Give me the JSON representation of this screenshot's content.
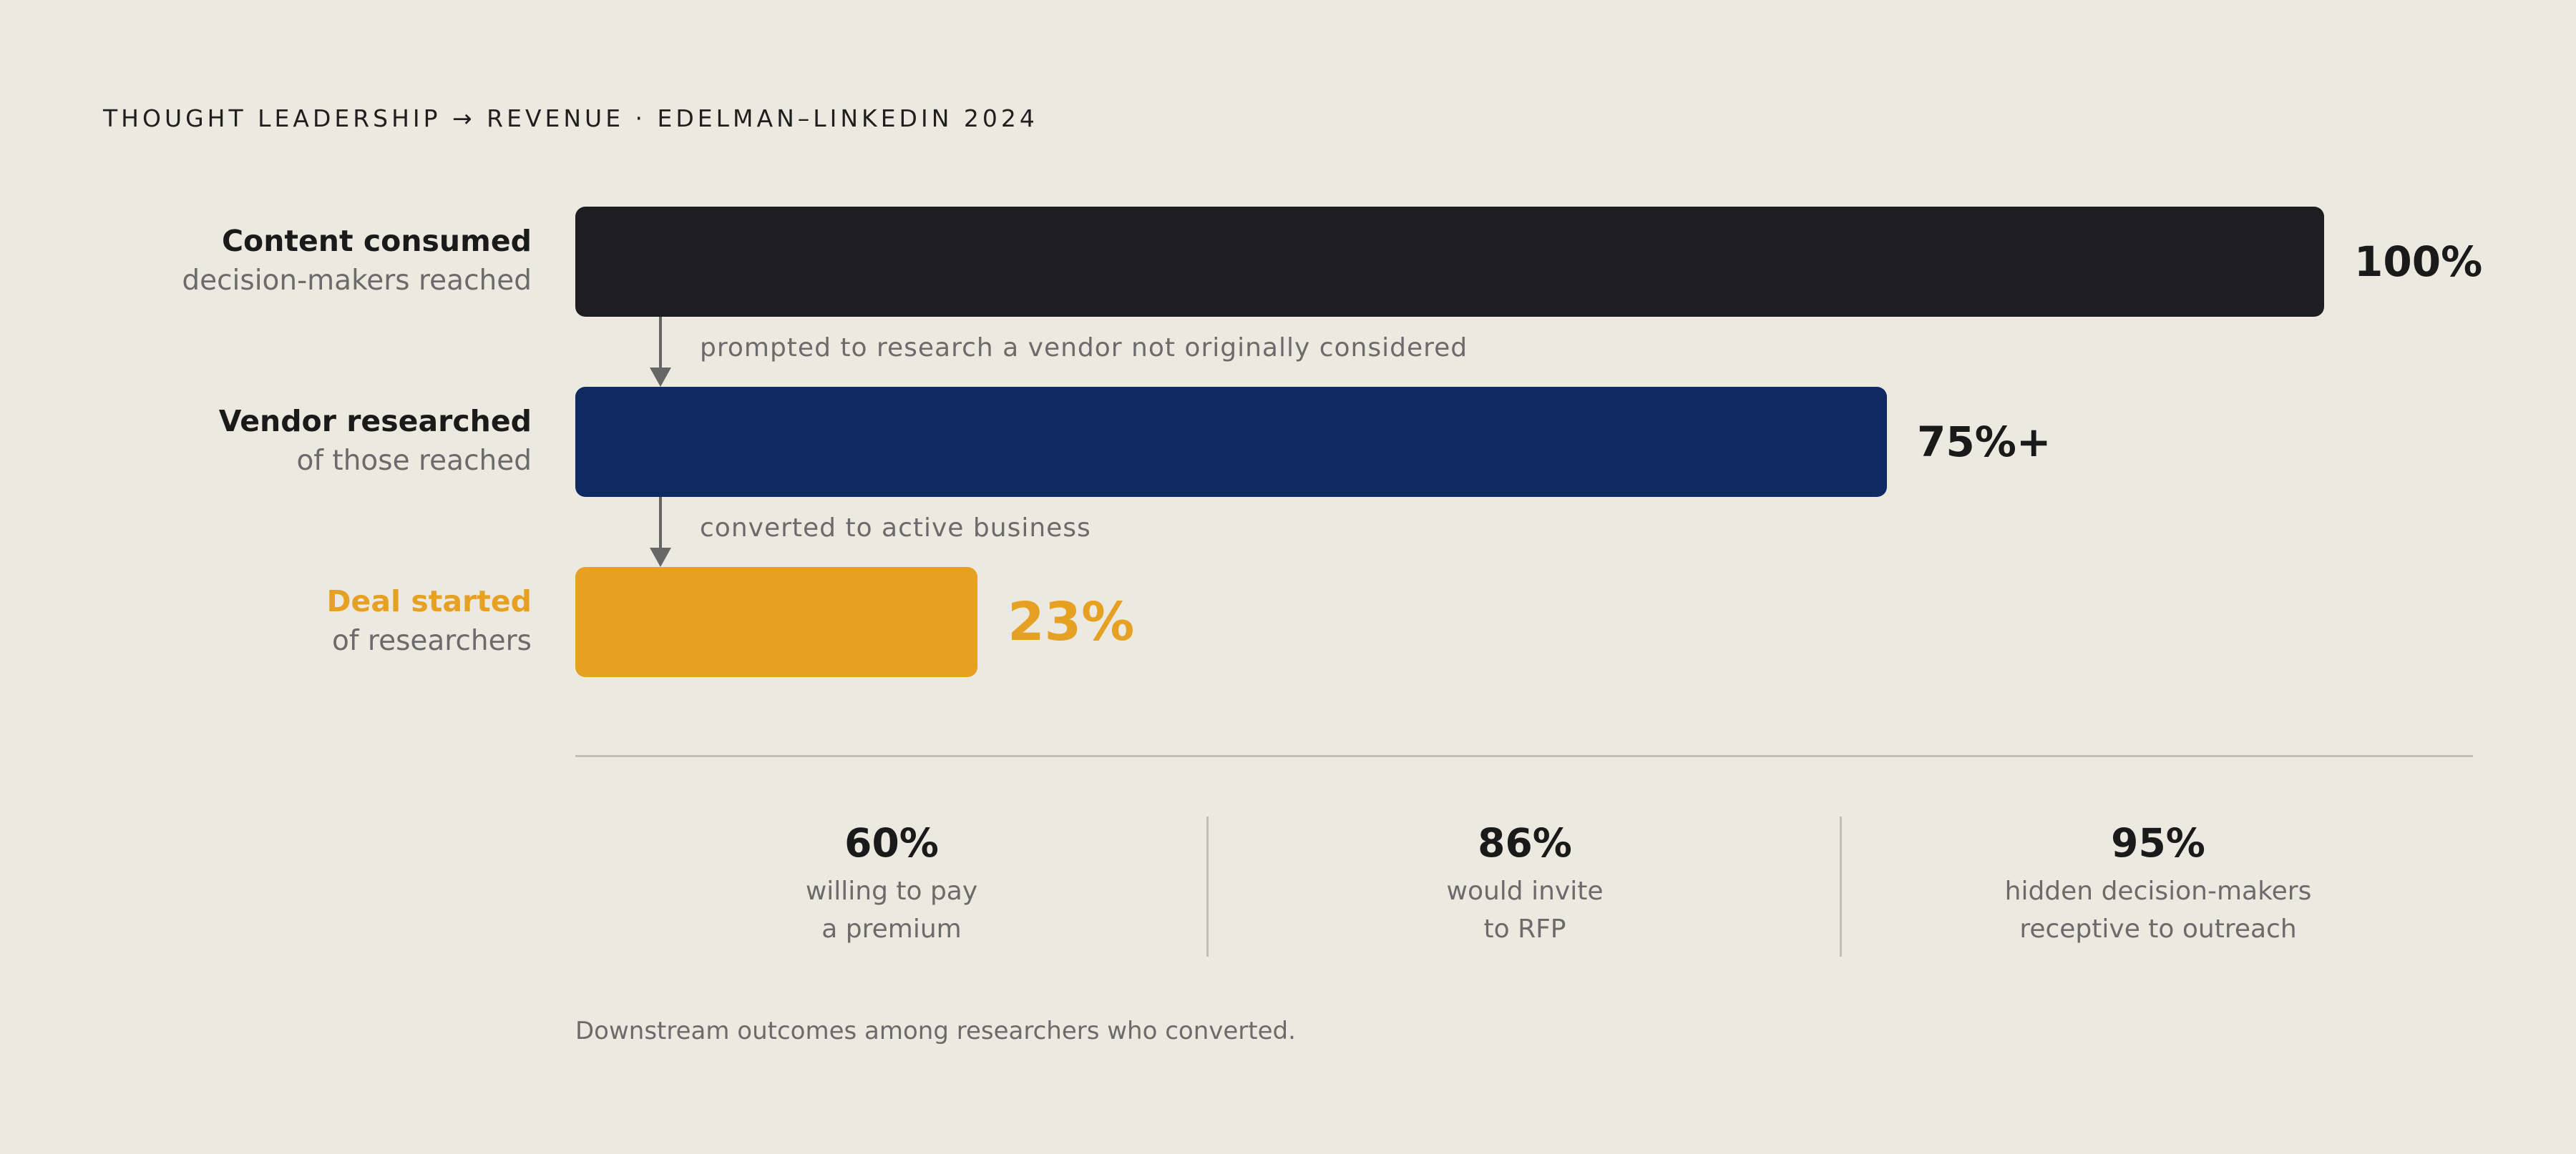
{
  "header": {
    "kicker": "THOUGHT LEADERSHIP → REVENUE · EDELMAN–LINKEDIN 2024"
  },
  "chart_data": {
    "type": "bar",
    "orientation": "horizontal",
    "categories": [
      "Content consumed",
      "Vendor researched",
      "Deal started"
    ],
    "subtitles": [
      "decision-makers reached",
      "of those reached",
      "of researchers"
    ],
    "values": [
      100,
      75,
      23
    ],
    "value_labels": [
      "100%",
      "75%+",
      "23%"
    ],
    "colors": [
      "#1E1E20",
      "#0F2961",
      "#E6A022"
    ],
    "label_colors": [
      "#1a1a1a",
      "#1a1a1a",
      "#E6A022"
    ],
    "xlim": [
      0,
      100
    ],
    "transitions": [
      "prompted to research a vendor not originally considered",
      "converted to active business"
    ]
  },
  "stats": [
    {
      "value": "60%",
      "line1": "willing to pay",
      "line2": "a premium"
    },
    {
      "value": "86%",
      "line1": "would invite",
      "line2": "to RFP"
    },
    {
      "value": "95%",
      "line1": "hidden decision-makers",
      "line2": "receptive to outreach"
    }
  ],
  "footnote": "Downstream outcomes among researchers who converted."
}
